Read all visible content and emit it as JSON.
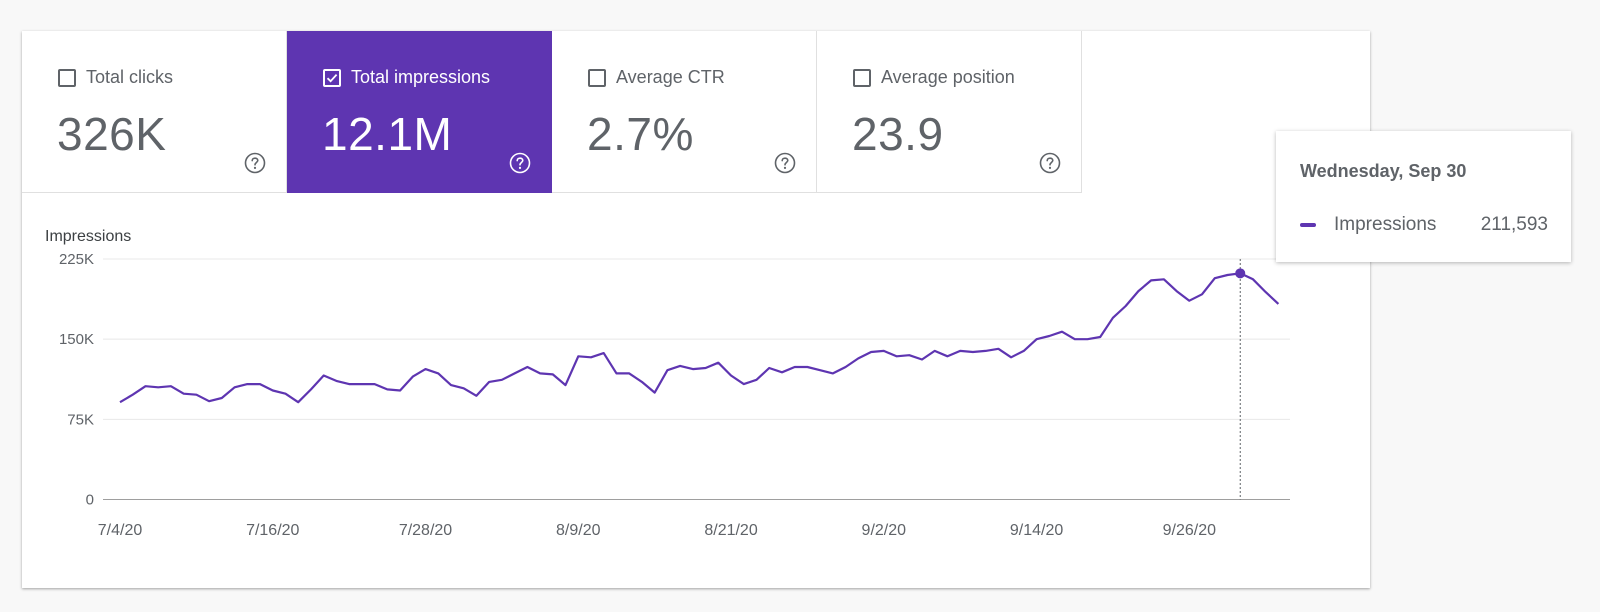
{
  "metrics": [
    {
      "label": "Total clicks",
      "value": "326K",
      "checked": false
    },
    {
      "label": "Total impressions",
      "value": "12.1M",
      "checked": true
    },
    {
      "label": "Average CTR",
      "value": "2.7%",
      "checked": false
    },
    {
      "label": "Average position",
      "value": "23.9",
      "checked": false
    }
  ],
  "icons": {
    "help": "help-circle-icon",
    "checkbox": "checkbox-icon"
  },
  "colors": {
    "accent": "#5e35b1",
    "text": "#5f6368",
    "grid": "#e8e8e8"
  },
  "tooltip": {
    "date": "Wednesday, Sep 30",
    "series": "Impressions",
    "value": "211,593",
    "index": 88
  },
  "chart_data": {
    "type": "line",
    "ylabel": "Impressions",
    "ylim": [
      0,
      225000
    ],
    "yticks": [
      0,
      75000,
      150000,
      225000
    ],
    "ytick_labels": [
      "0",
      "75K",
      "150K",
      "225K"
    ],
    "xtick_labels": [
      "7/4/20",
      "7/16/20",
      "7/28/20",
      "8/9/20",
      "8/21/20",
      "9/2/20",
      "9/14/20",
      "9/26/20"
    ],
    "xtick_indices": [
      0,
      12,
      24,
      36,
      48,
      60,
      72,
      84
    ],
    "x_start": "7/4/20",
    "series": [
      {
        "name": "Impressions",
        "color": "#5e35b1",
        "values": [
          91000,
          98000,
          106000,
          105000,
          106000,
          99000,
          98000,
          92000,
          95000,
          105000,
          108000,
          108000,
          102000,
          99000,
          91000,
          103000,
          116000,
          111000,
          108000,
          108000,
          108000,
          103000,
          102000,
          115000,
          122000,
          118000,
          107000,
          104000,
          97000,
          110000,
          112000,
          118000,
          124000,
          118000,
          117000,
          107000,
          134000,
          133000,
          137000,
          118000,
          118000,
          110000,
          100000,
          121000,
          125000,
          122000,
          123000,
          128000,
          116000,
          108000,
          112000,
          123000,
          119000,
          124000,
          124000,
          121000,
          118000,
          124000,
          132000,
          138000,
          139000,
          134000,
          135000,
          131000,
          139000,
          134000,
          139000,
          138000,
          139000,
          141000,
          133000,
          139000,
          150000,
          153000,
          157000,
          150000,
          150000,
          152000,
          170000,
          181000,
          195000,
          205000,
          206000,
          195000,
          186000,
          192000,
          207000,
          210000,
          211593,
          206000,
          194000,
          183000
        ]
      }
    ],
    "grid": true,
    "legend": "none"
  }
}
